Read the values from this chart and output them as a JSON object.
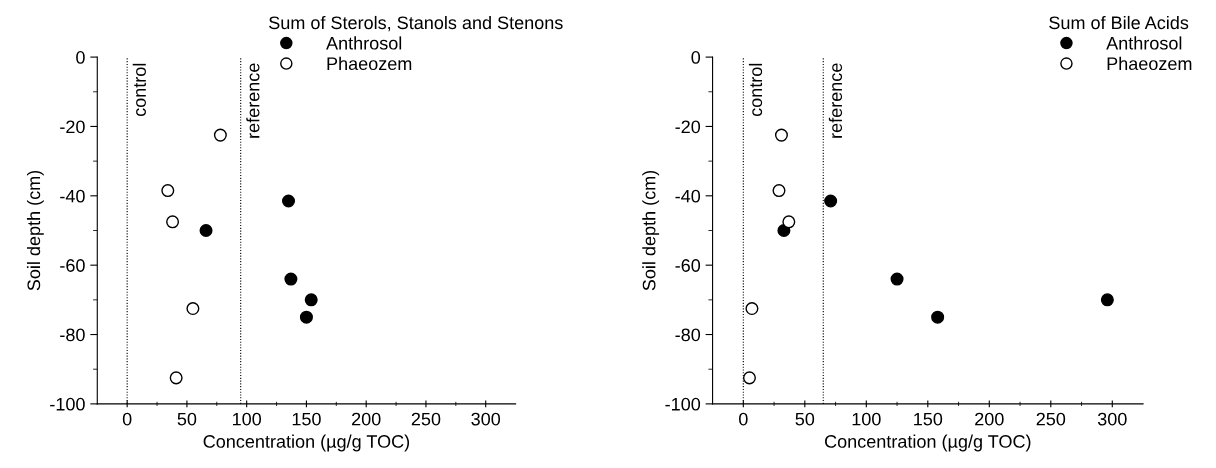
{
  "chart_data": [
    {
      "type": "scatter",
      "xlabel": "Concentration (µg/g TOC)",
      "ylabel": "Soil depth (cm)",
      "legend_title": "Sum of Sterols, Stanols and Stenons",
      "legend": "top right",
      "marker": "circle",
      "grid": false,
      "xlim": [
        -25,
        325
      ],
      "xticks": [
        0,
        50,
        100,
        150,
        200,
        250,
        300
      ],
      "ylim": [
        -100,
        0
      ],
      "yticks": [
        -100,
        -80,
        -60,
        -40,
        -20,
        0
      ],
      "ref_lines": [
        {
          "axis": "x",
          "value": 0,
          "label": "control",
          "line_style": "dotted",
          "color": "#000000"
        },
        {
          "axis": "x",
          "value": 95,
          "label": "reference",
          "line_style": "dotted",
          "color": "#000000"
        }
      ],
      "series": [
        {
          "name": "Anthrosol",
          "color": "#000000",
          "x": [
            135,
            66,
            137,
            154,
            150
          ],
          "values": [
            -41.5,
            -50,
            -64,
            -70,
            -75
          ]
        },
        {
          "name": "Phaeozem",
          "color": "#ffffff",
          "x": [
            78,
            34,
            38,
            55,
            41
          ],
          "values": [
            -22.5,
            -38.5,
            -47.5,
            -72.5,
            -92.5
          ]
        }
      ]
    },
    {
      "type": "scatter",
      "xlabel": "Concentration (µg/g TOC)",
      "ylabel": "Soil depth (cm)",
      "legend_title": "Sum of Bile Acids",
      "legend": "top right",
      "marker": "circle",
      "grid": false,
      "xlim": [
        -25,
        325
      ],
      "xticks": [
        0,
        50,
        100,
        150,
        200,
        250,
        300
      ],
      "ylim": [
        -100,
        0
      ],
      "yticks": [
        -100,
        -80,
        -60,
        -40,
        -20,
        0
      ],
      "ref_lines": [
        {
          "axis": "x",
          "value": 0,
          "label": "control",
          "line_style": "dotted",
          "color": "#000000"
        },
        {
          "axis": "x",
          "value": 65,
          "label": "reference",
          "line_style": "dotted",
          "color": "#000000"
        }
      ],
      "series": [
        {
          "name": "Anthrosol",
          "color": "#000000",
          "x": [
            71,
            33,
            125,
            158,
            296
          ],
          "values": [
            -41.5,
            -50,
            -64,
            -75,
            -70
          ]
        },
        {
          "name": "Phaeozem",
          "color": "#ffffff",
          "x": [
            31,
            29,
            37,
            7,
            5
          ],
          "values": [
            -22.5,
            -38.5,
            -47.5,
            -72.5,
            -92.5
          ]
        }
      ]
    }
  ]
}
